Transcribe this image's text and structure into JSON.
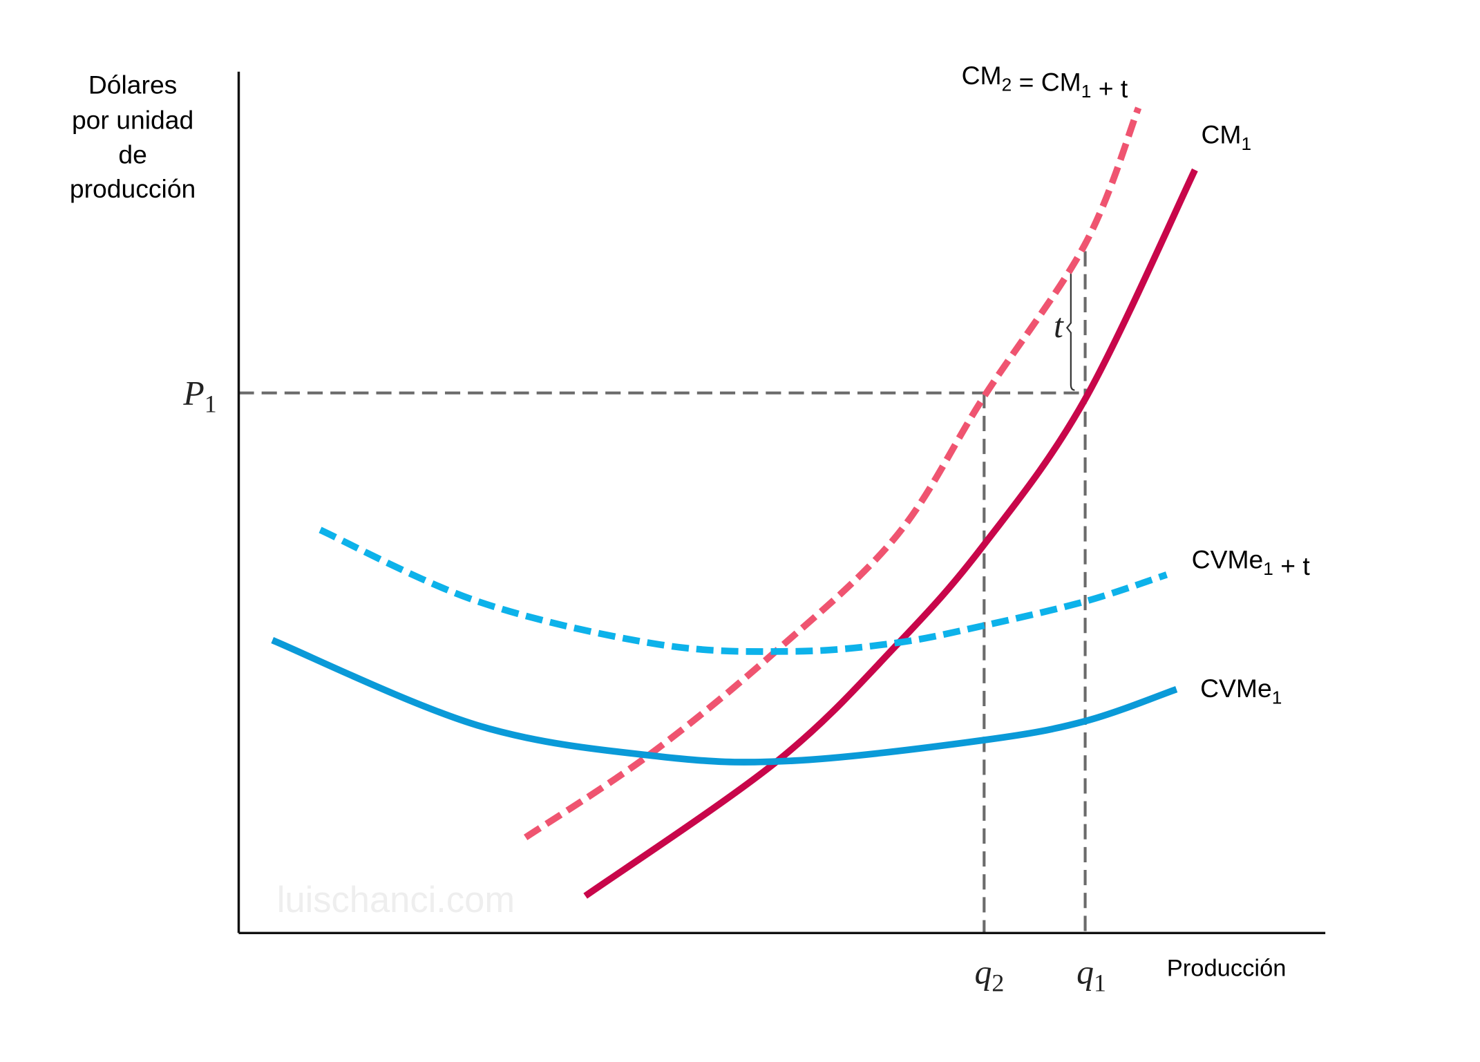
{
  "chart_data": {
    "type": "line",
    "title": "",
    "xlabel": "Producción",
    "ylabel_lines": [
      "Dólares",
      "por unidad",
      "de",
      "producción"
    ],
    "xlim": [
      0,
      100
    ],
    "ylim": [
      0,
      100
    ],
    "grid": false,
    "watermark": "luischanci.com",
    "reference_lines": {
      "price": {
        "label": "P",
        "sub": "1",
        "value": 62.7
      },
      "q2": {
        "label": "q",
        "sub": "2",
        "value": 68.6
      },
      "q1": {
        "label": "q",
        "sub": "1",
        "value": 77.9
      }
    },
    "tax_bracket": {
      "label": "t",
      "from": 62.7,
      "to": 77.5
    },
    "series": [
      {
        "name": "CM1",
        "label": [
          {
            "t": "CM"
          },
          {
            "t": "1",
            "sub": true
          }
        ],
        "color": "#c8064a",
        "dashed": false,
        "x": [
          31.9,
          49.6,
          60.6,
          68.6,
          77.9,
          88.0
        ],
        "y": [
          4.3,
          20.0,
          33.5,
          45.1,
          62.0,
          88.6
        ]
      },
      {
        "name": "CM2 = CM1 + t",
        "label": [
          {
            "t": "CM"
          },
          {
            "t": "2",
            "sub": true
          },
          {
            "t": " = CM"
          },
          {
            "t": "1",
            "sub": true
          },
          {
            "t": " + t"
          }
        ],
        "color": "#ef5470",
        "dashed": true,
        "x": [
          26.4,
          37.8,
          49.6,
          60.6,
          68.6,
          77.9,
          82.8
        ],
        "y": [
          11.1,
          20.7,
          32.9,
          46.2,
          62.3,
          80.0,
          95.8
        ]
      },
      {
        "name": "CVMe1",
        "label": [
          {
            "t": "CVMe"
          },
          {
            "t": "1",
            "sub": true
          }
        ],
        "color": "#0a9ad8",
        "dashed": false,
        "x": [
          3.1,
          22.0,
          38.7,
          51.0,
          68.6,
          77.9,
          86.3
        ],
        "y": [
          34.0,
          24.1,
          20.5,
          20.0,
          22.4,
          24.6,
          28.3
        ]
      },
      {
        "name": "CVMe1 + t",
        "label": [
          {
            "t": "CVMe"
          },
          {
            "t": "1",
            "sub": true
          },
          {
            "t": " + t"
          }
        ],
        "color": "#0db2ea",
        "dashed": true,
        "x": [
          7.5,
          22.0,
          38.7,
          51.0,
          60.6,
          68.6,
          77.9,
          85.4
        ],
        "y": [
          46.8,
          38.5,
          33.5,
          32.7,
          33.7,
          35.7,
          38.5,
          41.6
        ]
      }
    ]
  }
}
